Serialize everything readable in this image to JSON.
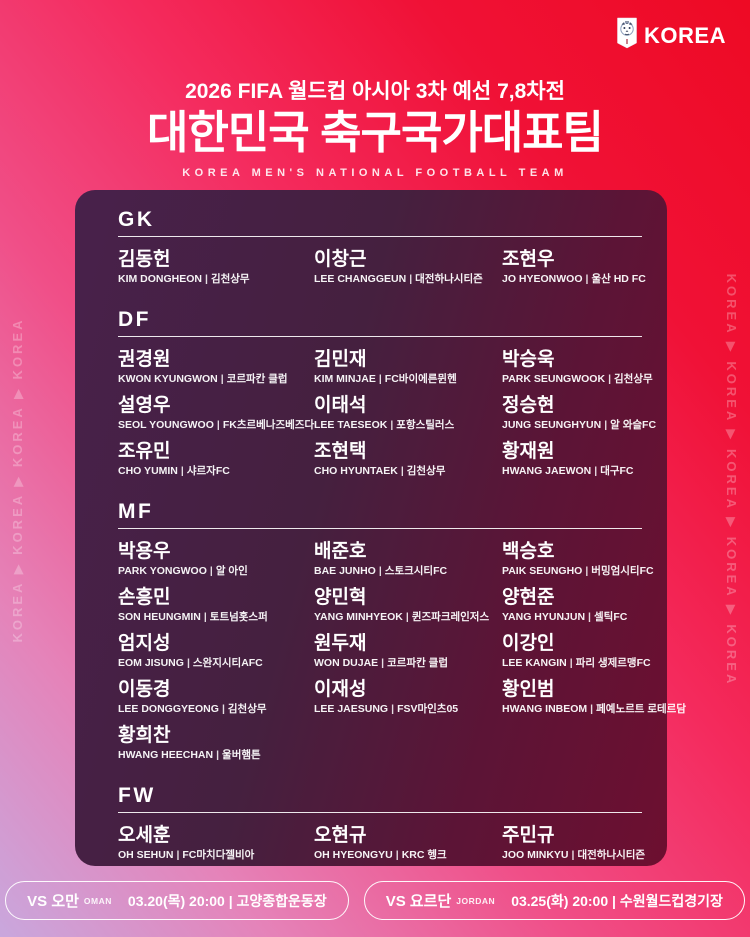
{
  "logo": {
    "text": "KOREA",
    "emblem": "kfa-tiger-emblem"
  },
  "header": {
    "subtitle": "2026 FIFA 월드컵 아시아 3차 예선 7,8차전",
    "title": "대한민국 축구국가대표팀",
    "subtitle_en": "KOREA MEN'S NATIONAL FOOTBALL TEAM"
  },
  "side_text": {
    "left": "KOREA ▶ KOREA ▶ KOREA ▶ KOREA",
    "right": "KOREA ▶ KOREA ▶ KOREA ▶ KOREA ▶ KOREA"
  },
  "separator": "|",
  "roster": {
    "sections": [
      {
        "position": "GK",
        "players": [
          {
            "name_kr": "김동헌",
            "name_en": "KIM DONGHEON",
            "club": "김천상무"
          },
          {
            "name_kr": "이창근",
            "name_en": "LEE CHANGGEUN",
            "club": "대전하나시티즌"
          },
          {
            "name_kr": "조현우",
            "name_en": "JO HYEONWOO",
            "club": "울산 HD FC"
          }
        ]
      },
      {
        "position": "DF",
        "players": [
          {
            "name_kr": "권경원",
            "name_en": "KWON KYUNGWON",
            "club": "코르파칸 클럽"
          },
          {
            "name_kr": "김민재",
            "name_en": "KIM MINJAE",
            "club": "FC바이에른뮌헨"
          },
          {
            "name_kr": "박승욱",
            "name_en": "PARK SEUNGWOOK",
            "club": "김천상무"
          },
          {
            "name_kr": "설영우",
            "name_en": "SEOL YOUNGWOO",
            "club": "FK츠르베나즈베즈다"
          },
          {
            "name_kr": "이태석",
            "name_en": "LEE TAESEOK",
            "club": "포항스틸러스"
          },
          {
            "name_kr": "정승현",
            "name_en": "JUNG SEUNGHYUN",
            "club": "알 와슬FC"
          },
          {
            "name_kr": "조유민",
            "name_en": "CHO YUMIN",
            "club": "샤르자FC"
          },
          {
            "name_kr": "조현택",
            "name_en": "CHO HYUNTAEK",
            "club": "김천상무"
          },
          {
            "name_kr": "황재원",
            "name_en": "HWANG JAEWON",
            "club": "대구FC"
          }
        ]
      },
      {
        "position": "MF",
        "players": [
          {
            "name_kr": "박용우",
            "name_en": "PARK YONGWOO",
            "club": "알 아인"
          },
          {
            "name_kr": "배준호",
            "name_en": "BAE JUNHO",
            "club": "스토크시티FC"
          },
          {
            "name_kr": "백승호",
            "name_en": "PAIK SEUNGHO",
            "club": "버밍엄시티FC"
          },
          {
            "name_kr": "손흥민",
            "name_en": "SON HEUNGMIN",
            "club": "토트넘홋스퍼"
          },
          {
            "name_kr": "양민혁",
            "name_en": "YANG MINHYEOK",
            "club": "퀸즈파크레인저스"
          },
          {
            "name_kr": "양현준",
            "name_en": "YANG HYUNJUN",
            "club": "셀틱FC"
          },
          {
            "name_kr": "엄지성",
            "name_en": "EOM JISUNG",
            "club": "스완지시티AFC"
          },
          {
            "name_kr": "원두재",
            "name_en": "WON DUJAE",
            "club": "코르파칸 클럽"
          },
          {
            "name_kr": "이강인",
            "name_en": "LEE KANGIN",
            "club": "파리 생제르맹FC"
          },
          {
            "name_kr": "이동경",
            "name_en": "LEE DONGGYEONG",
            "club": "김천상무"
          },
          {
            "name_kr": "이재성",
            "name_en": "LEE JAESUNG",
            "club": "FSV마인츠05"
          },
          {
            "name_kr": "황인범",
            "name_en": "HWANG INBEOM",
            "club": "페예노르트 로테르담"
          },
          {
            "name_kr": "황희찬",
            "name_en": "HWANG HEECHAN",
            "club": "울버햄튼"
          }
        ]
      },
      {
        "position": "FW",
        "players": [
          {
            "name_kr": "오세훈",
            "name_en": "OH SEHUN",
            "club": "FC마치다젤비아"
          },
          {
            "name_kr": "오현규",
            "name_en": "OH HYEONGYU",
            "club": "KRC 헹크"
          },
          {
            "name_kr": "주민규",
            "name_en": "JOO MINKYU",
            "club": "대전하나시티즌"
          }
        ]
      }
    ]
  },
  "matches": [
    {
      "vs": "VS 오만",
      "vs_en": "OMAN",
      "info": "03.20(목) 20:00 | 고양종합운동장"
    },
    {
      "vs": "VS 요르단",
      "vs_en": "JORDAN",
      "info": "03.25(화) 20:00 | 수원월드컵경기장"
    }
  ],
  "colors": {
    "background_top_right": "#ee0a24",
    "background_bottom_left": "#c9a7dd",
    "card_left": "#48214b",
    "card_right": "#6d0f30",
    "text": "#ffffff"
  }
}
